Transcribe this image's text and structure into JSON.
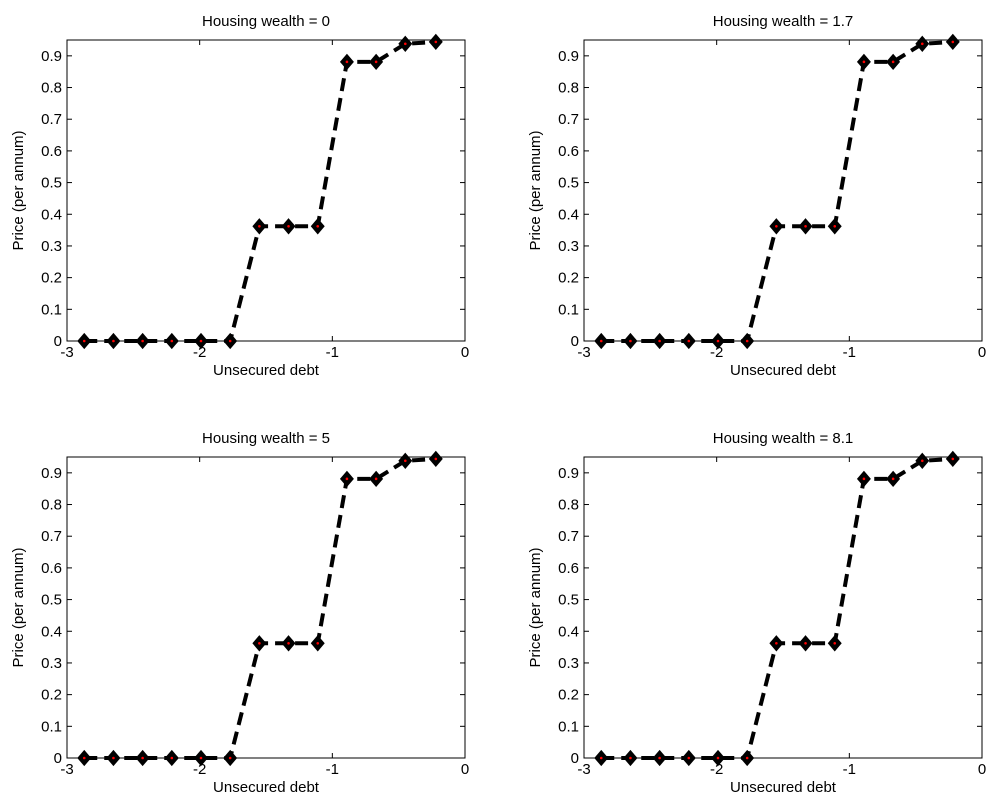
{
  "chart_data": [
    {
      "type": "line",
      "title": "Housing wealth = 0",
      "x_label": "Unsecured debt",
      "y_label": "Price (per annum)",
      "x": [
        -2.87,
        -2.65,
        -2.43,
        -2.21,
        -1.99,
        -1.77,
        -1.55,
        -1.33,
        -1.11,
        -0.89,
        -0.67,
        -0.45,
        -0.22
      ],
      "series": [
        {
          "color": "#000000",
          "marker_center_color": "#ff0000",
          "values": [
            0,
            0,
            0,
            0,
            0,
            0,
            0.362,
            0.362,
            0.362,
            0.881,
            0.881,
            0.938,
            0.944
          ]
        }
      ],
      "xlim": [
        -3,
        0
      ],
      "xticks": [
        -3,
        -2,
        -1,
        0
      ],
      "ylim": [
        0,
        0.95
      ],
      "yticks": [
        0,
        0.1,
        0.2,
        0.3,
        0.4,
        0.5,
        0.6,
        0.7,
        0.8,
        0.9
      ],
      "grid": false
    },
    {
      "type": "line",
      "title": "Housing wealth = 1.7",
      "x_label": "Unsecured debt",
      "y_label": "Price (per annum)",
      "x": [
        -2.87,
        -2.65,
        -2.43,
        -2.21,
        -1.99,
        -1.77,
        -1.55,
        -1.33,
        -1.11,
        -0.89,
        -0.67,
        -0.45,
        -0.22
      ],
      "series": [
        {
          "color": "#000000",
          "marker_center_color": "#ff0000",
          "values": [
            0,
            0,
            0,
            0,
            0,
            0,
            0.362,
            0.362,
            0.362,
            0.881,
            0.881,
            0.938,
            0.944
          ]
        }
      ],
      "xlim": [
        -3,
        0
      ],
      "xticks": [
        -3,
        -2,
        -1,
        0
      ],
      "ylim": [
        0,
        0.95
      ],
      "yticks": [
        0,
        0.1,
        0.2,
        0.3,
        0.4,
        0.5,
        0.6,
        0.7,
        0.8,
        0.9
      ],
      "grid": false
    },
    {
      "type": "line",
      "title": "Housing wealth = 5",
      "x_label": "Unsecured debt",
      "y_label": "Price (per annum)",
      "x": [
        -2.87,
        -2.65,
        -2.43,
        -2.21,
        -1.99,
        -1.77,
        -1.55,
        -1.33,
        -1.11,
        -0.89,
        -0.67,
        -0.45,
        -0.22
      ],
      "series": [
        {
          "color": "#000000",
          "marker_center_color": "#ff0000",
          "values": [
            0,
            0,
            0,
            0,
            0,
            0,
            0.362,
            0.362,
            0.362,
            0.881,
            0.881,
            0.938,
            0.944
          ]
        }
      ],
      "xlim": [
        -3,
        0
      ],
      "xticks": [
        -3,
        -2,
        -1,
        0
      ],
      "ylim": [
        0,
        0.95
      ],
      "yticks": [
        0,
        0.1,
        0.2,
        0.3,
        0.4,
        0.5,
        0.6,
        0.7,
        0.8,
        0.9
      ],
      "grid": false
    },
    {
      "type": "line",
      "title": "Housing wealth = 8.1",
      "x_label": "Unsecured debt",
      "y_label": "Price (per annum)",
      "x": [
        -2.87,
        -2.65,
        -2.43,
        -2.21,
        -1.99,
        -1.77,
        -1.55,
        -1.33,
        -1.11,
        -0.89,
        -0.67,
        -0.45,
        -0.22
      ],
      "series": [
        {
          "color": "#000000",
          "marker_center_color": "#ff0000",
          "values": [
            0,
            0,
            0,
            0,
            0,
            0,
            0.362,
            0.362,
            0.362,
            0.881,
            0.881,
            0.938,
            0.944
          ]
        }
      ],
      "xlim": [
        -3,
        0
      ],
      "xticks": [
        -3,
        -2,
        -1,
        0
      ],
      "ylim": [
        0,
        0.95
      ],
      "yticks": [
        0,
        0.1,
        0.2,
        0.3,
        0.4,
        0.5,
        0.6,
        0.7,
        0.8,
        0.9
      ],
      "grid": false
    }
  ]
}
